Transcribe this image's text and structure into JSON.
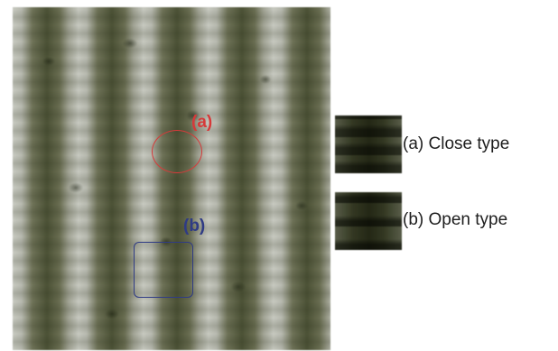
{
  "annotations": {
    "a": {
      "label": "(a)",
      "color": "#d63a3a"
    },
    "b": {
      "label": "(b)",
      "color": "#2f3b85"
    }
  },
  "legend": [
    {
      "caption": "(a) Close type"
    },
    {
      "caption": "(b) Open type"
    }
  ]
}
